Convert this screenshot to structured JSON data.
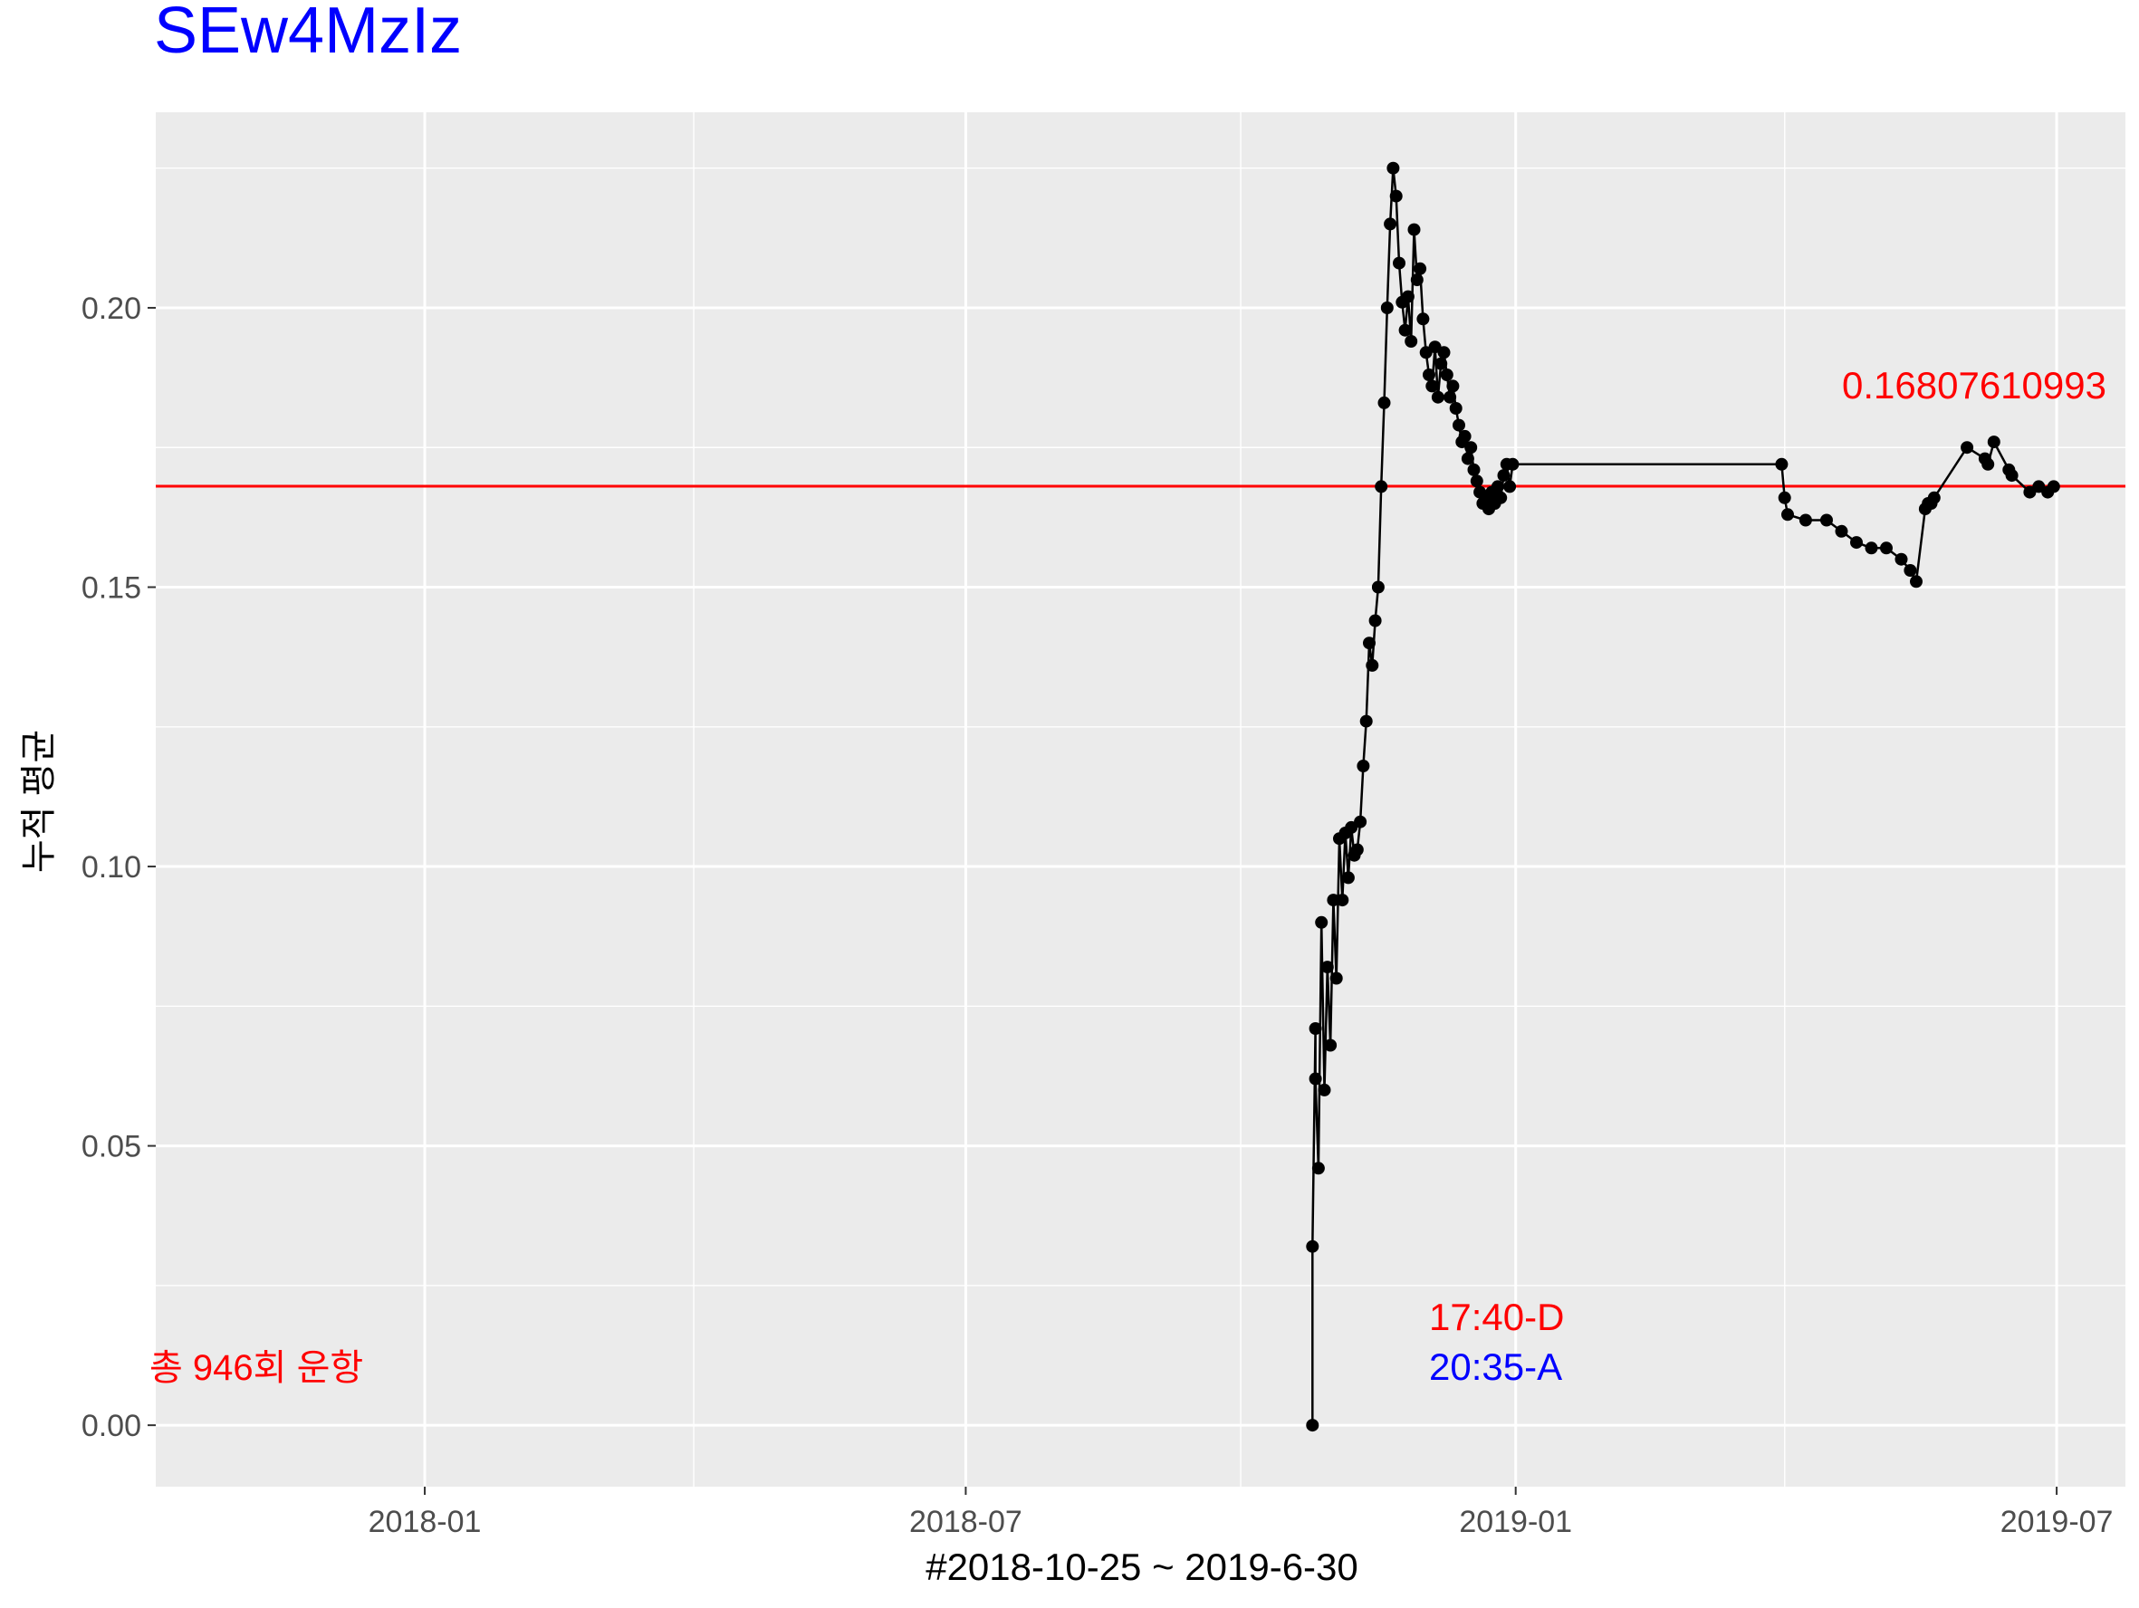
{
  "chart_data": {
    "type": "line",
    "title": "SEw4MzIz",
    "title_color": "#0000ff",
    "xlabel": "#2018-10-25 ~ 2019-6-30",
    "ylabel": "누적 평균",
    "x_ticks": [
      "2018-01",
      "2018-07",
      "2019-01",
      "2019-07"
    ],
    "y_ticks": [
      "0.00",
      "0.05",
      "0.10",
      "0.15",
      "0.20"
    ],
    "xlim": [
      "2017-10-03",
      "2019-07-24"
    ],
    "ylim": [
      -0.011,
      0.235
    ],
    "grid": true,
    "panel_background": "#ebebeb",
    "reference_line": {
      "y": 0.16807610993,
      "color": "#ff0000",
      "label": "0.16807610993"
    },
    "annotations": {
      "total_flights": {
        "text": "총 946회 운항",
        "color": "#ff0000"
      },
      "departure": {
        "text": "17:40-D",
        "color": "#ff0000"
      },
      "arrival": {
        "text": "20:35-A",
        "color": "#0000ff"
      }
    },
    "series": [
      {
        "color": "#000000",
        "x": [
          "2018-10-25",
          "2018-10-25",
          "2018-10-26",
          "2018-10-26",
          "2018-10-27",
          "2018-10-28",
          "2018-10-29",
          "2018-10-30",
          "2018-10-31",
          "2018-11-01",
          "2018-11-02",
          "2018-11-03",
          "2018-11-04",
          "2018-11-05",
          "2018-11-06",
          "2018-11-07",
          "2018-11-08",
          "2018-11-09",
          "2018-11-10",
          "2018-11-11",
          "2018-11-12",
          "2018-11-13",
          "2018-11-14",
          "2018-11-15",
          "2018-11-16",
          "2018-11-17",
          "2018-11-18",
          "2018-11-19",
          "2018-11-20",
          "2018-11-21",
          "2018-11-22",
          "2018-11-23",
          "2018-11-24",
          "2018-11-25",
          "2018-11-26",
          "2018-11-27",
          "2018-11-28",
          "2018-11-29",
          "2018-11-30",
          "2018-12-01",
          "2018-12-02",
          "2018-12-03",
          "2018-12-04",
          "2018-12-05",
          "2018-12-06",
          "2018-12-07",
          "2018-12-08",
          "2018-12-09",
          "2018-12-10",
          "2018-12-11",
          "2018-12-12",
          "2018-12-13",
          "2018-12-14",
          "2018-12-15",
          "2018-12-16",
          "2018-12-17",
          "2018-12-18",
          "2018-12-19",
          "2018-12-20",
          "2018-12-21",
          "2018-12-22",
          "2018-12-23",
          "2018-12-24",
          "2018-12-25",
          "2018-12-26",
          "2018-12-27",
          "2018-12-28",
          "2018-12-29",
          "2018-12-30",
          "2018-12-31",
          "2019-03-31",
          "2019-04-01",
          "2019-04-02",
          "2019-04-08",
          "2019-04-15",
          "2019-04-20",
          "2019-04-25",
          "2019-04-30",
          "2019-05-05",
          "2019-05-10",
          "2019-05-13",
          "2019-05-15",
          "2019-05-18",
          "2019-05-19",
          "2019-05-20",
          "2019-05-21",
          "2019-06-01",
          "2019-06-07",
          "2019-06-08",
          "2019-06-10",
          "2019-06-15",
          "2019-06-16",
          "2019-06-22",
          "2019-06-25",
          "2019-06-28",
          "2019-06-30"
        ],
        "y": [
          0.0,
          0.032,
          0.071,
          0.062,
          0.046,
          0.09,
          0.06,
          0.082,
          0.068,
          0.094,
          0.08,
          0.105,
          0.094,
          0.106,
          0.098,
          0.107,
          0.102,
          0.103,
          0.108,
          0.118,
          0.126,
          0.14,
          0.136,
          0.144,
          0.15,
          0.168,
          0.183,
          0.2,
          0.215,
          0.225,
          0.22,
          0.208,
          0.201,
          0.196,
          0.202,
          0.194,
          0.214,
          0.205,
          0.207,
          0.198,
          0.192,
          0.188,
          0.186,
          0.193,
          0.184,
          0.19,
          0.192,
          0.188,
          0.184,
          0.186,
          0.182,
          0.179,
          0.176,
          0.177,
          0.173,
          0.175,
          0.171,
          0.169,
          0.167,
          0.165,
          0.166,
          0.164,
          0.167,
          0.165,
          0.168,
          0.166,
          0.17,
          0.172,
          0.168,
          0.172,
          0.172,
          0.166,
          0.163,
          0.162,
          0.162,
          0.16,
          0.158,
          0.157,
          0.157,
          0.155,
          0.153,
          0.151,
          0.164,
          0.165,
          0.165,
          0.166,
          0.175,
          0.173,
          0.172,
          0.176,
          0.171,
          0.17,
          0.167,
          0.168,
          0.167,
          0.168
        ]
      }
    ]
  }
}
